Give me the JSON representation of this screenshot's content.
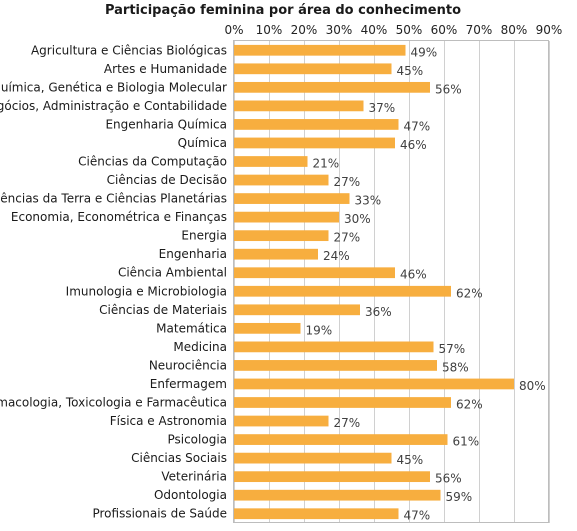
{
  "chart_data": {
    "type": "bar",
    "orientation": "horizontal",
    "title": "Participação feminina por área do conhecimento",
    "categories": [
      "Agricultura e Ciências Biológicas",
      "Artes e Humanidade",
      "Bioquímica, Genética e Biologia Molecular",
      "Negócios, Administração e Contabilidade",
      "Engenharia Química",
      "Química",
      "Ciências da Computação",
      "Ciências de Decisão",
      "Ciências da Terra e Ciências Planetárias",
      "Economia, Econométrica e Finanças",
      "Energia",
      "Engenharia",
      "Ciência Ambiental",
      "Imunologia e Microbiologia",
      "Ciências de Materiais",
      "Matemática",
      "Medicina",
      "Neurociência",
      "Enfermagem",
      "Farmacologia, Toxicologia e Farmacêutica",
      "Física e Astronomia",
      "Psicologia",
      "Ciências Sociais",
      "Veterinária",
      "Odontologia",
      "Profissionais de Saúde"
    ],
    "values": [
      49,
      45,
      56,
      37,
      47,
      46,
      21,
      27,
      33,
      30,
      27,
      24,
      46,
      62,
      36,
      19,
      57,
      58,
      80,
      62,
      27,
      61,
      45,
      56,
      59,
      47
    ],
    "data_labels": [
      "49%",
      "45%",
      "56%",
      "37%",
      "47%",
      "46%",
      "21%",
      "27%",
      "33%",
      "30%",
      "27%",
      "24%",
      "46%",
      "62%",
      "36%",
      "19%",
      "57%",
      "58%",
      "80%",
      "62%",
      "27%",
      "61%",
      "45%",
      "56%",
      "59%",
      "47%"
    ],
    "x_ticks": [
      "0%",
      "10%",
      "20%",
      "30%",
      "40%",
      "50%",
      "60%",
      "70%",
      "80%",
      "90%"
    ],
    "xlim": [
      0,
      90
    ],
    "x_axis_position": "top",
    "grid": true,
    "bar_color": "#F7AE3F"
  }
}
